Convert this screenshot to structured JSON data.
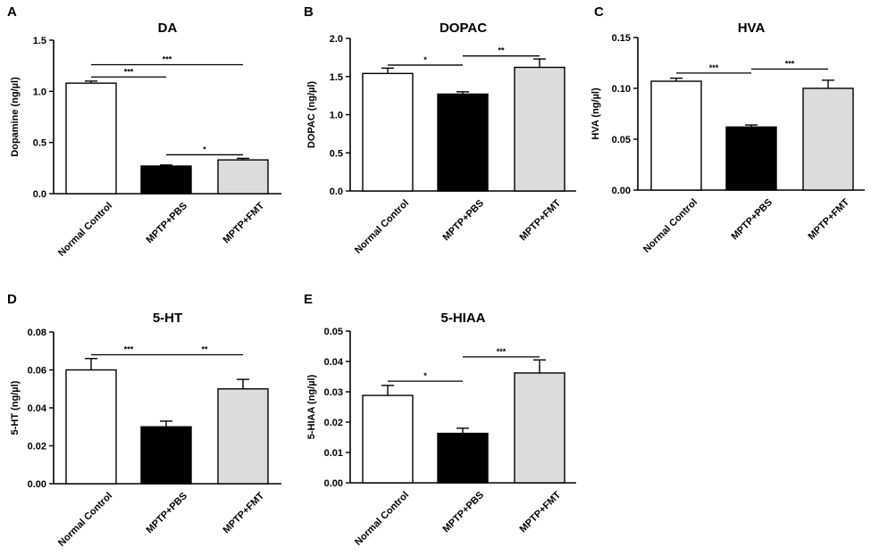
{
  "chart_data": [
    {
      "type": "bar",
      "panel": "A",
      "title": "DA",
      "ylabel": "Dopamine (ng/µl)",
      "categories": [
        "Normal Control",
        "MPTP+PBS",
        "MPTP+FMT"
      ],
      "values": [
        1.08,
        0.27,
        0.33
      ],
      "errors": [
        0.02,
        0.01,
        0.015
      ],
      "colors": [
        "#ffffff",
        "#000000",
        "#dcdcdc"
      ],
      "ylim": [
        0,
        1.5
      ],
      "yticks": [
        "0.0",
        "0.5",
        "1.0",
        "1.5"
      ],
      "significance": [
        {
          "from": 0,
          "to": 2,
          "y": 1.26,
          "label": "***"
        },
        {
          "from": 0,
          "to": 1,
          "y": 1.14,
          "label": "***"
        },
        {
          "from": 1,
          "to": 2,
          "y": 0.38,
          "label": "*"
        }
      ]
    },
    {
      "type": "bar",
      "panel": "B",
      "title": "DOPAC",
      "ylabel": "DOPAC (ng/µl)",
      "categories": [
        "Normal Control",
        "MPTP+PBS",
        "MPTP+FMT"
      ],
      "values": [
        1.54,
        1.27,
        1.62
      ],
      "errors": [
        0.07,
        0.03,
        0.11
      ],
      "colors": [
        "#ffffff",
        "#000000",
        "#dcdcdc"
      ],
      "ylim": [
        0,
        2.0
      ],
      "yticks": [
        "0.0",
        "0.5",
        "1.0",
        "1.5",
        "2.0"
      ],
      "significance": [
        {
          "from": 0,
          "to": 1,
          "y": 1.65,
          "label": "*"
        },
        {
          "from": 1,
          "to": 2,
          "y": 1.77,
          "label": "**"
        }
      ]
    },
    {
      "type": "bar",
      "panel": "C",
      "title": "HVA",
      "ylabel": "HVA (ng/µl)",
      "categories": [
        "Normal Control",
        "MPTP+PBS",
        "MPTP+FMT"
      ],
      "values": [
        0.107,
        0.062,
        0.1
      ],
      "errors": [
        0.003,
        0.002,
        0.008
      ],
      "colors": [
        "#ffffff",
        "#000000",
        "#dcdcdc"
      ],
      "ylim": [
        0,
        0.15
      ],
      "yticks": [
        "0.00",
        "0.05",
        "0.10",
        "0.15"
      ],
      "significance": [
        {
          "from": 0,
          "to": 1,
          "y": 0.115,
          "label": "***"
        },
        {
          "from": 1,
          "to": 2,
          "y": 0.119,
          "label": "***"
        }
      ]
    },
    {
      "type": "bar",
      "panel": "D",
      "title": "5-HT",
      "ylabel": "5-HT (ng/µl)",
      "categories": [
        "Normal Control",
        "MPTP+PBS",
        "MPTP+FMT"
      ],
      "values": [
        0.06,
        0.03,
        0.05
      ],
      "errors": [
        0.006,
        0.003,
        0.005
      ],
      "colors": [
        "#ffffff",
        "#000000",
        "#dcdcdc"
      ],
      "ylim": [
        0,
        0.08
      ],
      "yticks": [
        "0.00",
        "0.02",
        "0.04",
        "0.06",
        "0.08"
      ],
      "significance": [
        {
          "from": 0,
          "to": 1,
          "y": 0.068,
          "label": "***"
        },
        {
          "from": 1,
          "to": 2,
          "y": 0.068,
          "label": "**"
        }
      ]
    },
    {
      "type": "bar",
      "panel": "E",
      "title": "5-HIAA",
      "ylabel": "5-HIAA (ng/µl)",
      "categories": [
        "Normal Control",
        "MPTP+PBS",
        "MPTP+FMT"
      ],
      "values": [
        0.0288,
        0.0163,
        0.0362
      ],
      "errors": [
        0.0033,
        0.0017,
        0.0043
      ],
      "colors": [
        "#ffffff",
        "#000000",
        "#dcdcdc"
      ],
      "ylim": [
        0,
        0.05
      ],
      "yticks": [
        "0.00",
        "0.01",
        "0.02",
        "0.03",
        "0.04",
        "0.05"
      ],
      "significance": [
        {
          "from": 0,
          "to": 1,
          "y": 0.0335,
          "label": "*"
        },
        {
          "from": 1,
          "to": 2,
          "y": 0.0415,
          "label": "***"
        }
      ]
    }
  ]
}
